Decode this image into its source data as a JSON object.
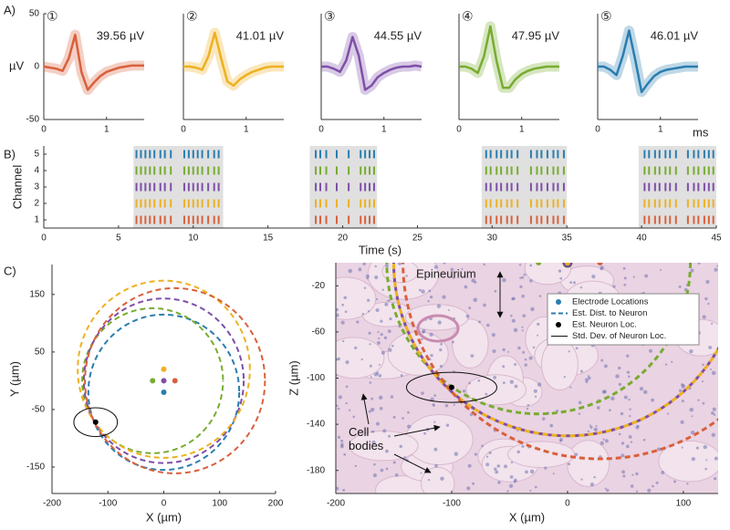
{
  "panel_labels": [
    "A)",
    "B)",
    "C)"
  ],
  "chart_data": [
    {
      "type": "waveform",
      "title": "①",
      "annotation": "39.56 µV",
      "color": "#d9603b",
      "x": [
        0,
        0.1,
        0.2,
        0.3,
        0.4,
        0.5,
        0.6,
        0.7,
        0.8,
        0.9,
        1.0,
        1.1,
        1.2,
        1.3,
        1.4,
        1.5,
        1.6
      ],
      "values": [
        0,
        -1,
        -2,
        -4,
        8,
        30,
        -5,
        -22,
        -15,
        -9,
        -5,
        -3,
        -1,
        0,
        1,
        1,
        1
      ],
      "xlim": [
        0,
        1.6
      ],
      "ylim": [
        -50,
        50
      ],
      "xticks": [
        0,
        1
      ],
      "yticks": [
        50,
        0,
        -50
      ],
      "ylabel": "µV"
    },
    {
      "type": "waveform",
      "title": "②",
      "annotation": "41.01 µV",
      "color": "#edb120",
      "x": [
        0,
        0.1,
        0.2,
        0.3,
        0.4,
        0.5,
        0.6,
        0.7,
        0.8,
        0.9,
        1.0,
        1.1,
        1.2,
        1.3,
        1.4,
        1.5,
        1.6
      ],
      "values": [
        0,
        0,
        -1,
        -3,
        10,
        32,
        8,
        -14,
        -18,
        -12,
        -8,
        -5,
        -3,
        -1,
        0,
        0,
        0
      ],
      "xlim": [
        0,
        1.6
      ],
      "ylim": [
        -50,
        50
      ],
      "xticks": [
        0,
        1
      ]
    },
    {
      "type": "waveform",
      "title": "③",
      "annotation": "44.55 µV",
      "color": "#7e4fa8",
      "x": [
        0,
        0.1,
        0.2,
        0.3,
        0.4,
        0.5,
        0.6,
        0.7,
        0.8,
        0.9,
        1.0,
        1.1,
        1.2,
        1.3,
        1.4,
        1.5,
        1.6
      ],
      "values": [
        0,
        0,
        -2,
        -5,
        6,
        28,
        10,
        -22,
        -18,
        -10,
        -6,
        -3,
        -1,
        0,
        0,
        1,
        0
      ],
      "xlim": [
        0,
        1.6
      ],
      "ylim": [
        -50,
        50
      ],
      "xticks": [
        0,
        1
      ]
    },
    {
      "type": "waveform",
      "title": "④",
      "annotation": "47.95 µV",
      "color": "#77ac30",
      "x": [
        0,
        0.1,
        0.2,
        0.3,
        0.4,
        0.5,
        0.6,
        0.7,
        0.8,
        0.9,
        1.0,
        1.1,
        1.2,
        1.3,
        1.4,
        1.5,
        1.6
      ],
      "values": [
        0,
        0,
        -2,
        -6,
        10,
        38,
        5,
        -20,
        -20,
        -12,
        -7,
        -4,
        -2,
        -1,
        0,
        0,
        0
      ],
      "xlim": [
        0,
        1.6
      ],
      "ylim": [
        -50,
        50
      ],
      "xticks": [
        0,
        1
      ]
    },
    {
      "type": "waveform",
      "title": "⑤",
      "annotation": "46.01 µV",
      "color": "#2a7db0",
      "x": [
        0,
        0.1,
        0.2,
        0.3,
        0.4,
        0.5,
        0.6,
        0.7,
        0.8,
        0.9,
        1.0,
        1.1,
        1.2,
        1.3,
        1.4,
        1.5,
        1.6
      ],
      "values": [
        0,
        0,
        -3,
        -8,
        10,
        34,
        6,
        -24,
        -16,
        -9,
        -5,
        -3,
        -2,
        -1,
        0,
        0,
        0
      ],
      "xlim": [
        0,
        1.6
      ],
      "ylim": [
        -50,
        50
      ],
      "xticks": [
        0,
        1
      ],
      "xlabel": "ms"
    },
    {
      "type": "raster",
      "xlabel": "Time (s)",
      "ylabel": "Channel",
      "xlim": [
        0,
        45
      ],
      "ylim": [
        0.5,
        5.5
      ],
      "xticks": [
        0,
        5,
        10,
        15,
        20,
        25,
        30,
        35,
        40,
        45
      ],
      "yticks": [
        5,
        4,
        3,
        2,
        1
      ],
      "shaded": [
        [
          6,
          12
        ],
        [
          17.8,
          22.3
        ],
        [
          29.3,
          35
        ],
        [
          39.8,
          45
        ]
      ],
      "x": [
        6.2,
        6.5,
        6.8,
        7.1,
        7.4,
        7.8,
        8.1,
        8.5,
        9.4,
        9.7,
        10.0,
        10.3,
        10.6,
        11.0,
        11.4,
        11.7,
        18.2,
        18.5,
        18.9,
        19.6,
        20.4,
        21.2,
        21.5,
        21.8,
        22.1,
        29.6,
        29.9,
        30.3,
        30.6,
        31.0,
        31.3,
        31.7,
        32.6,
        33.0,
        33.3,
        33.7,
        34.1,
        34.4,
        34.8,
        40.2,
        40.5,
        40.9,
        41.2,
        41.6,
        41.9,
        42.3,
        43.1,
        43.5,
        43.8,
        44.2,
        44.5,
        44.8
      ],
      "series": [
        {
          "color": "#2a7db0"
        },
        {
          "color": "#77ac30"
        },
        {
          "color": "#7e4fa8"
        },
        {
          "color": "#edb120"
        },
        {
          "color": "#d9603b"
        }
      ]
    },
    {
      "type": "localization",
      "xlabel": "X (µm)",
      "ylabel": "Y (µm)",
      "xlim": [
        -200,
        200
      ],
      "ylim": [
        -196,
        202
      ],
      "xticks": [
        -200,
        -100,
        0,
        100,
        200
      ],
      "yticks": [
        150,
        50,
        -50,
        -150
      ],
      "electrodes": {
        "x": [
          0,
          -20,
          0,
          0,
          20
        ],
        "y": [
          -20,
          0,
          0,
          20,
          0
        ],
        "radius": [
          135,
          126,
          143,
          154,
          161
        ],
        "colors": [
          "#2a7db0",
          "#77ac30",
          "#7e4fa8",
          "#edb120",
          "#d9603b"
        ]
      },
      "neuron": {
        "x": -122,
        "y": -72,
        "sd_x": 39,
        "sd_y": 25
      }
    },
    {
      "type": "localization",
      "background": "histology",
      "xlabel": "X (µm)",
      "ylabel": "Z (µm)",
      "xlim": [
        -200,
        130
      ],
      "ylim": [
        -200,
        0
      ],
      "xticks": [
        -200,
        -100,
        0,
        100
      ],
      "yticks": [
        -20,
        -60,
        -100,
        -140,
        -180
      ],
      "electrodes": {
        "x": [
          -25,
          0,
          0,
          28
        ],
        "y": [
          0,
          0,
          0,
          0
        ],
        "radius": [
          131,
          150,
          150,
          170
        ],
        "colors": [
          "#77ac30",
          "#7e4fa8",
          "#edb120",
          "#d9603b"
        ]
      },
      "neuron": {
        "x": -100,
        "y": -108,
        "sd_x": 39,
        "sd_y": 13
      },
      "legend": [
        "Electrode Locations",
        "Est. Dist. to Neuron",
        "Est. Neuron Loc.",
        "Std. Dev. of Neuron Loc."
      ],
      "annotations": [
        "Epineurium",
        "Cell bodies"
      ]
    }
  ]
}
